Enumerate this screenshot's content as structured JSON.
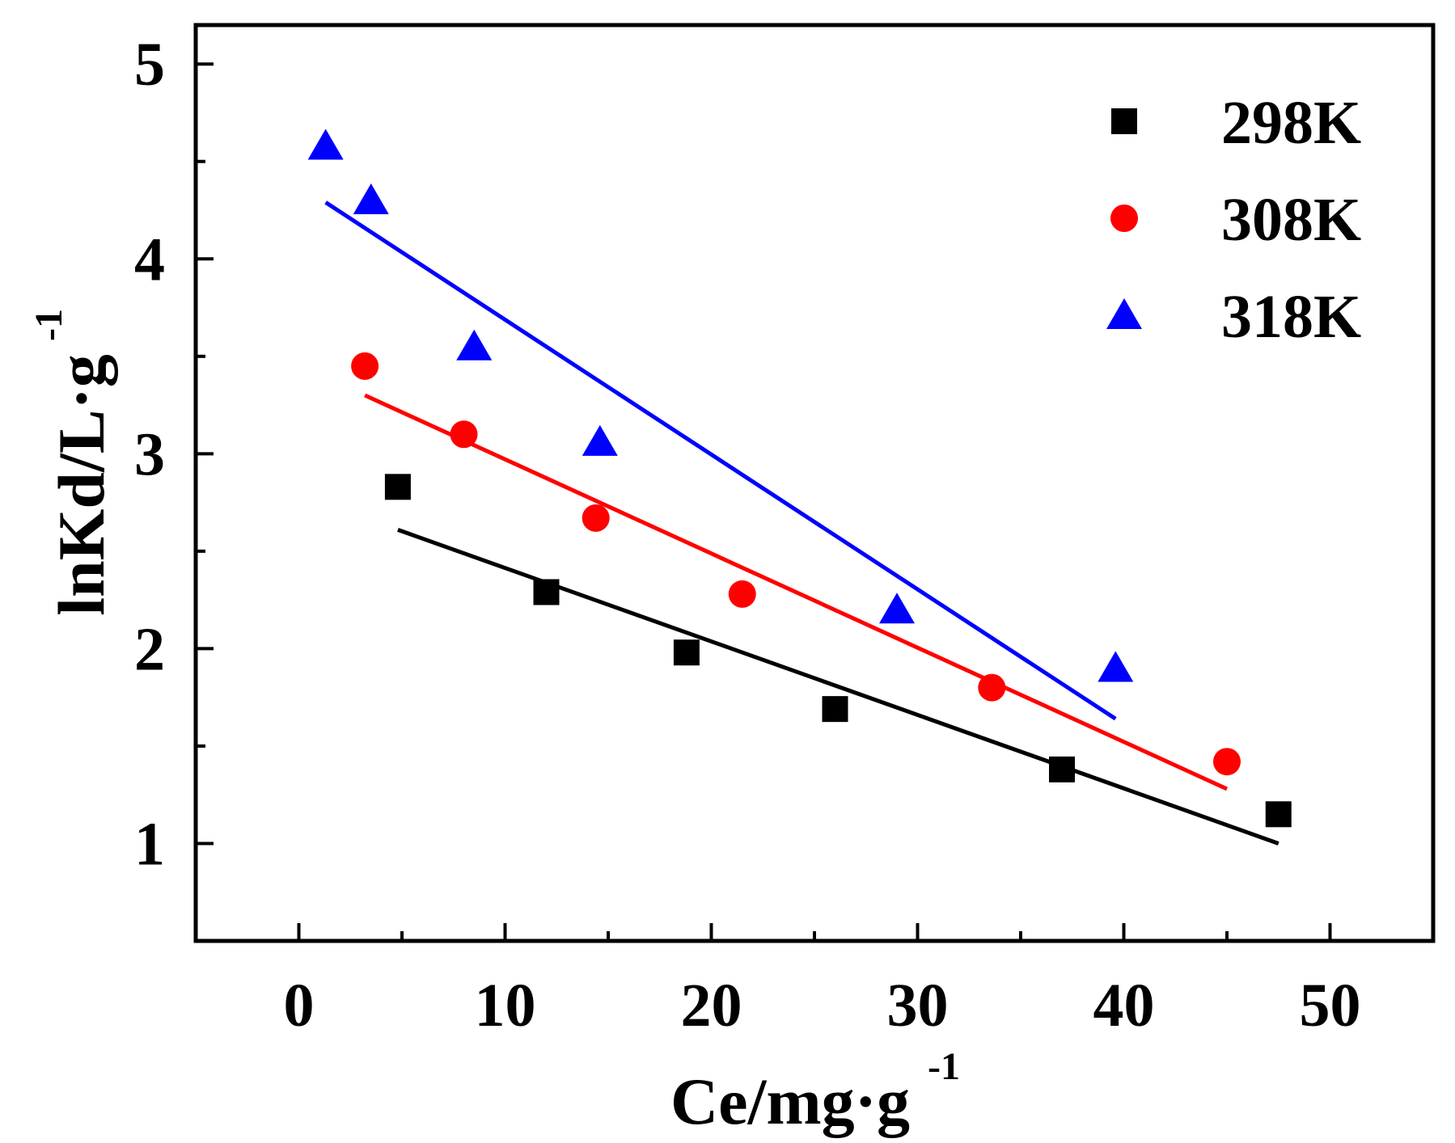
{
  "chart_data": {
    "type": "scatter",
    "title": "",
    "xlabel": "Ce/mg·g",
    "xlabel_sup": "-1",
    "ylabel": "lnKd/L·g",
    "ylabel_sup": "-1",
    "xlim": [
      -5,
      55
    ],
    "ylim": [
      0.5,
      5.2
    ],
    "xticks": [
      0,
      10,
      20,
      30,
      40,
      50
    ],
    "xtick_labels": [
      "0",
      "10",
      "20",
      "30",
      "40",
      "50"
    ],
    "yticks": [
      1,
      2,
      3,
      4,
      5
    ],
    "ytick_labels": [
      "1",
      "2",
      "3",
      "4",
      "5"
    ],
    "legend_position": "top-right",
    "grid": false,
    "series": [
      {
        "name": "298K",
        "marker": "square",
        "color": "#000000",
        "x": [
          4.8,
          12.0,
          18.8,
          26.0,
          37.0,
          47.5
        ],
        "y": [
          2.83,
          2.29,
          1.98,
          1.69,
          1.38,
          1.15
        ],
        "fit": {
          "x": [
            4.8,
            47.5
          ],
          "y": [
            2.61,
            1.0
          ]
        }
      },
      {
        "name": "308K",
        "marker": "circle",
        "color": "#ff0000",
        "x": [
          3.2,
          8.0,
          14.4,
          21.5,
          33.6,
          45.0
        ],
        "y": [
          3.45,
          3.1,
          2.67,
          2.28,
          1.8,
          1.42
        ],
        "fit": {
          "x": [
            3.2,
            45.0
          ],
          "y": [
            3.3,
            1.28
          ]
        }
      },
      {
        "name": "318K",
        "marker": "triangle",
        "color": "#0000ff",
        "x": [
          1.3,
          3.5,
          8.5,
          14.6,
          29.0,
          39.6
        ],
        "y": [
          4.58,
          4.3,
          3.55,
          3.06,
          2.2,
          1.9
        ],
        "fit": {
          "x": [
            1.3,
            39.6
          ],
          "y": [
            4.29,
            1.64
          ]
        }
      }
    ]
  }
}
